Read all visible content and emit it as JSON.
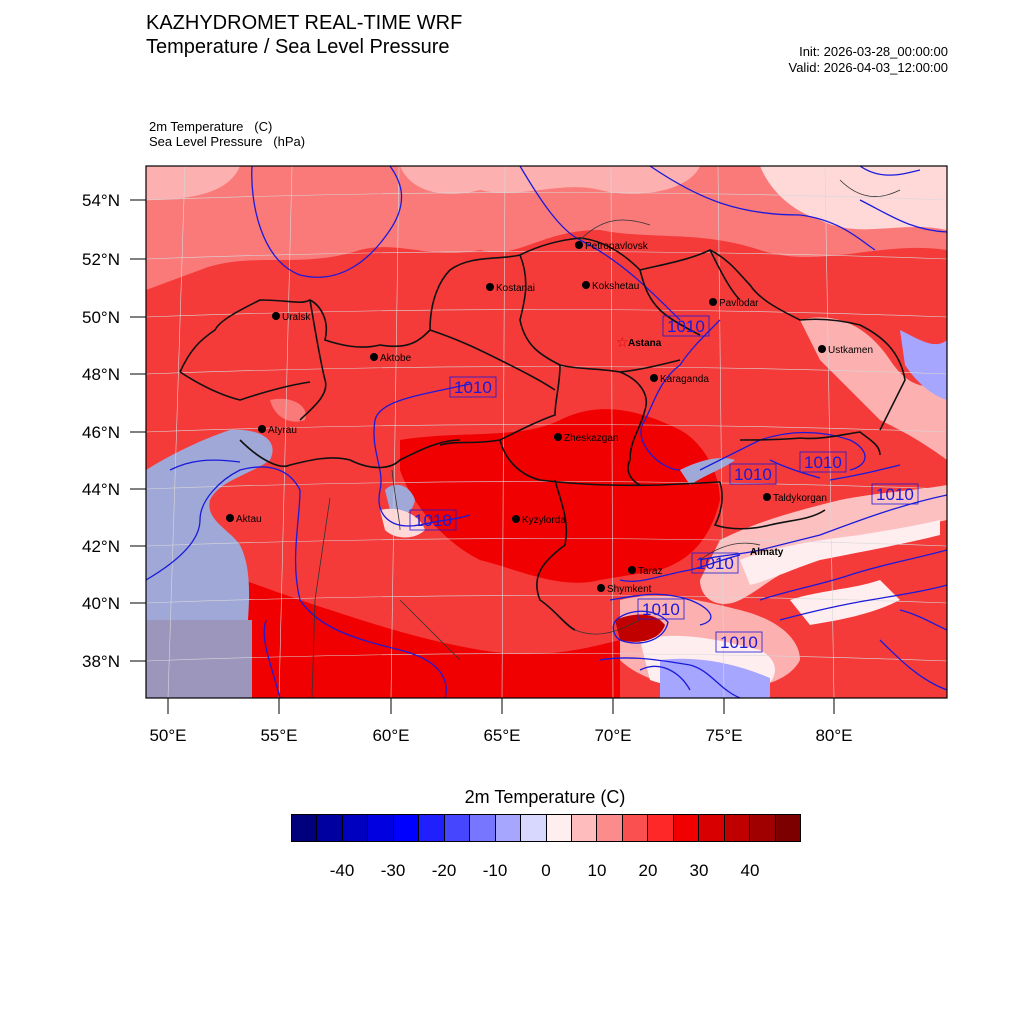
{
  "header": {
    "title": "KAZHYDROMET REAL-TIME WRF",
    "subtitle": "Temperature / Sea Level Pressure",
    "init": "Init: 2026-03-28_00:00:00",
    "valid": "Valid: 2026-04-03_12:00:00"
  },
  "fields": {
    "temperature": "2m Temperature   (C)",
    "pressure": "Sea Level Pressure   (hPa)"
  },
  "map": {
    "lat_labels": [
      "54°N",
      "52°N",
      "50°N",
      "48°N",
      "46°N",
      "44°N",
      "42°N",
      "40°N",
      "38°N"
    ],
    "lon_labels": [
      "50°E",
      "55°E",
      "60°E",
      "65°E",
      "70°E",
      "75°E",
      "80°E"
    ],
    "cities": [
      {
        "name": "Petropavlovsk",
        "bold": false
      },
      {
        "name": "Kostanai",
        "bold": false
      },
      {
        "name": "Kokshetau",
        "bold": false
      },
      {
        "name": "Pavlodar",
        "bold": false
      },
      {
        "name": "Uralsk",
        "bold": false
      },
      {
        "name": "Aktobe",
        "bold": false
      },
      {
        "name": "Astana",
        "bold": true
      },
      {
        "name": "Karaganda",
        "bold": false
      },
      {
        "name": "Ustkamen",
        "bold": false
      },
      {
        "name": "Atyrau",
        "bold": false
      },
      {
        "name": "Zheskazgan",
        "bold": false
      },
      {
        "name": "Aktau",
        "bold": false
      },
      {
        "name": "Kyzylorda",
        "bold": false
      },
      {
        "name": "Taldykorgan",
        "bold": false
      },
      {
        "name": "Almaty",
        "bold": true
      },
      {
        "name": "Taraz",
        "bold": false
      },
      {
        "name": "Shymkent",
        "bold": false
      }
    ],
    "isobar_label": "1010",
    "colors": {
      "sea": "#a0a8d8",
      "warm_base": "#f53a3a",
      "hot": "#f00000",
      "mild": "#fa7a7a",
      "isobar": "#1a1adb"
    }
  },
  "colorbar": {
    "title": "2m Temperature  (C)",
    "ticks": [
      "-40",
      "-30",
      "-20",
      "-10",
      "0",
      "10",
      "20",
      "30",
      "40"
    ],
    "colors": [
      "#00007d",
      "#0000a0",
      "#0000c0",
      "#0000e0",
      "#0000ff",
      "#2020ff",
      "#4646ff",
      "#7676ff",
      "#a6a6ff",
      "#d8d8ff",
      "#ffeef0",
      "#ffbcbc",
      "#fc8c8c",
      "#fa5050",
      "#ff2828",
      "#f00000",
      "#d80000",
      "#c00000",
      "#a00000",
      "#7d0000"
    ]
  }
}
